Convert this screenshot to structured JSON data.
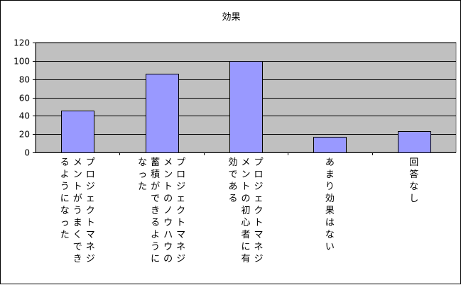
{
  "chart_data": {
    "type": "bar",
    "title": "効果",
    "categories": [
      "プロジェクトマネジメントがうまくできるようになった",
      "プロジェクトマネジメントのノウハウの蓄積ができるようになった",
      "プロジェクトマネジメントの初心者に有効である",
      "あまり効果はない",
      "回答なし"
    ],
    "category_columns": [
      [
        "プロジェクトマネジ",
        "メントがうまくでき",
        "るようになった"
      ],
      [
        "プロジェクトマネジ",
        "メントのノウハウの",
        "蓄積ができるように",
        "なった"
      ],
      [
        "プロジェクトマネジ",
        "メントの初心者に有",
        "効である"
      ],
      [
        "あまり効果はない"
      ],
      [
        "回答なし"
      ]
    ],
    "values": [
      46,
      86,
      100,
      17,
      23
    ],
    "ylim": [
      0,
      120
    ],
    "yticks": [
      "0",
      "20",
      "40",
      "60",
      "80",
      "100",
      "120"
    ],
    "grid": true,
    "legend": "none",
    "colors": {
      "plot_bg": "#c0c0c0",
      "bar_fill": "#9999ff",
      "bar_stroke": "#000000",
      "grid": "#000000"
    }
  }
}
